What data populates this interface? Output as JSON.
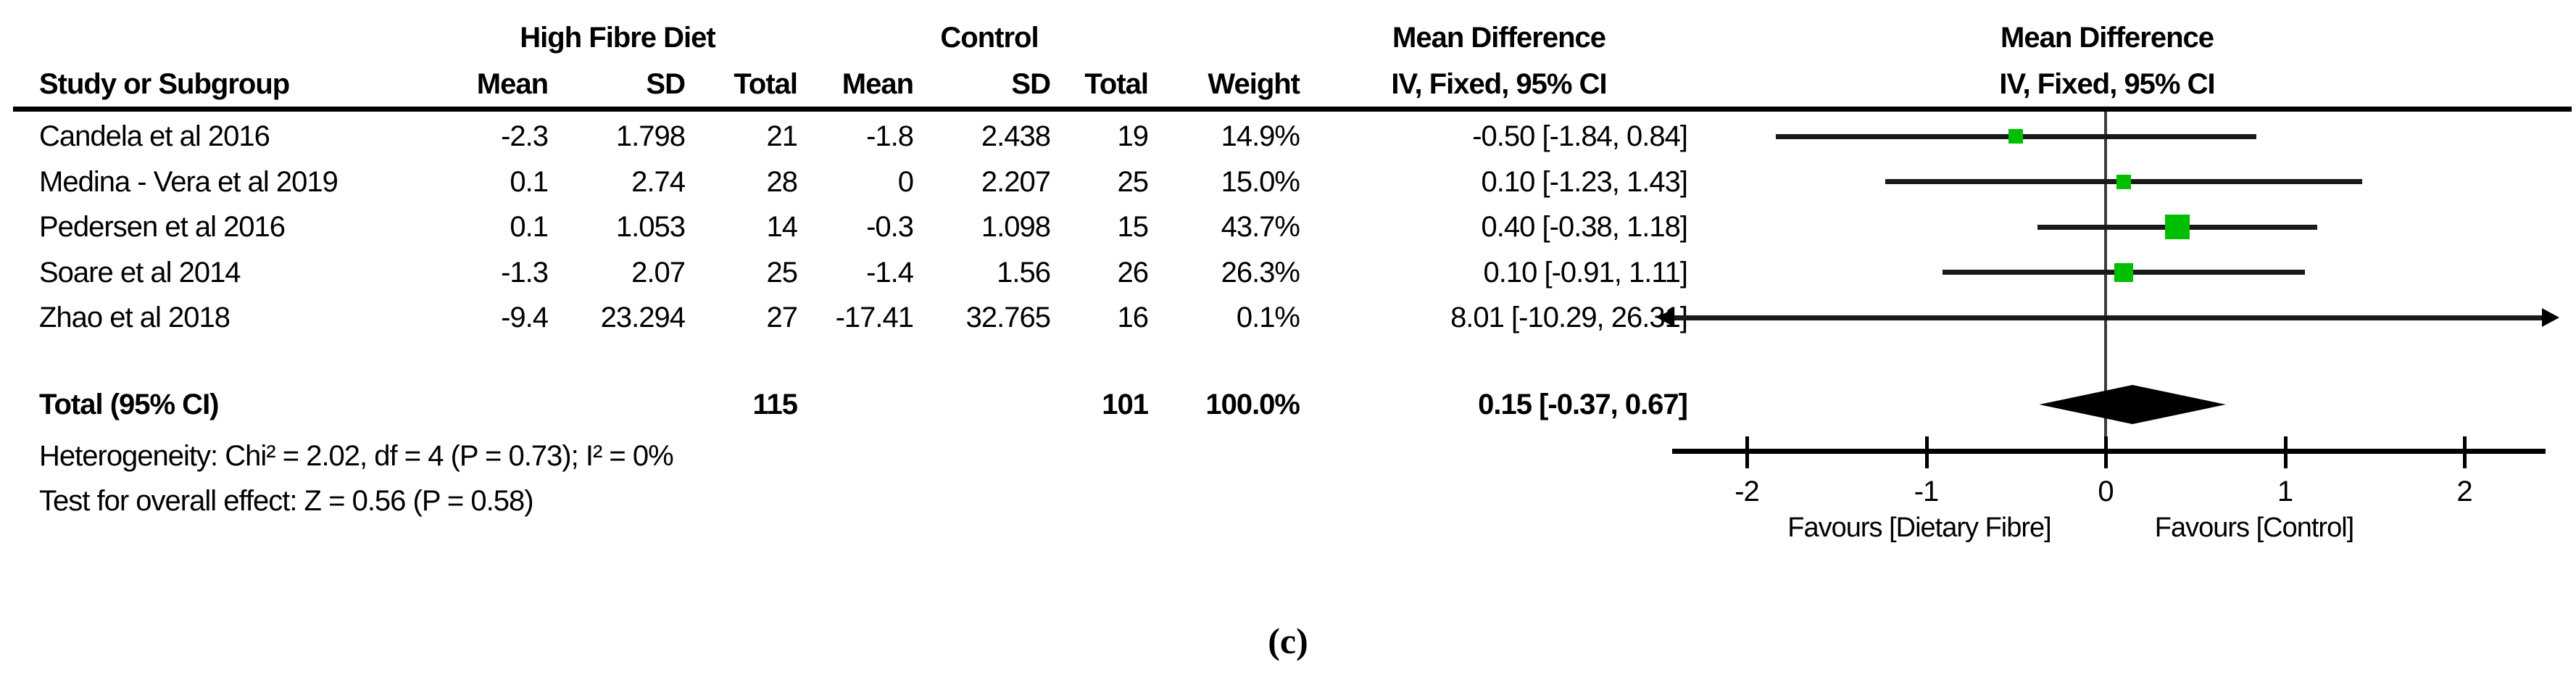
{
  "header": {
    "group_experimental": "High Fibre Diet",
    "group_control": "Control",
    "md_table": "Mean Difference",
    "md_plot": "Mean Difference",
    "ci_table": "IV, Fixed, 95% CI",
    "ci_plot": "IV, Fixed, 95% CI",
    "columns": {
      "study": "Study or Subgroup",
      "mean": "Mean",
      "sd": "SD",
      "total": "Total",
      "weight": "Weight"
    }
  },
  "caption": "(c)",
  "colors": {
    "square_green": "#00bf00",
    "diamond_black": "#000000",
    "text_black": "#000000"
  },
  "chart_data": {
    "type": "forest",
    "effect_measure": "Mean Difference",
    "method": "IV, Fixed, 95% CI",
    "studies": [
      {
        "name": "Candela et al 2016",
        "exp_mean": "-2.3",
        "exp_sd": "1.798",
        "exp_total": "21",
        "ctrl_mean": "-1.8",
        "ctrl_sd": "2.438",
        "ctrl_total": "19",
        "weight_text": "14.9%",
        "ci_text": "-0.50 [-1.84, 0.84]",
        "est": -0.5,
        "lo": -1.84,
        "hi": 0.84,
        "weight_pct": 14.9
      },
      {
        "name": "Medina - Vera et al 2019",
        "exp_mean": "0.1",
        "exp_sd": "2.74",
        "exp_total": "28",
        "ctrl_mean": "0",
        "ctrl_sd": "2.207",
        "ctrl_total": "25",
        "weight_text": "15.0%",
        "ci_text": "0.10 [-1.23, 1.43]",
        "est": 0.1,
        "lo": -1.23,
        "hi": 1.43,
        "weight_pct": 15.0
      },
      {
        "name": "Pedersen et al 2016",
        "exp_mean": "0.1",
        "exp_sd": "1.053",
        "exp_total": "14",
        "ctrl_mean": "-0.3",
        "ctrl_sd": "1.098",
        "ctrl_total": "15",
        "weight_text": "43.7%",
        "ci_text": "0.40 [-0.38, 1.18]",
        "est": 0.4,
        "lo": -0.38,
        "hi": 1.18,
        "weight_pct": 43.7
      },
      {
        "name": "Soare et al 2014",
        "exp_mean": "-1.3",
        "exp_sd": "2.07",
        "exp_total": "25",
        "ctrl_mean": "-1.4",
        "ctrl_sd": "1.56",
        "ctrl_total": "26",
        "weight_text": "26.3%",
        "ci_text": "0.10 [-0.91, 1.11]",
        "est": 0.1,
        "lo": -0.91,
        "hi": 1.11,
        "weight_pct": 26.3
      },
      {
        "name": "Zhao et al 2018",
        "exp_mean": "-9.4",
        "exp_sd": "23.294",
        "exp_total": "27",
        "ctrl_mean": "-17.41",
        "ctrl_sd": "32.765",
        "ctrl_total": "16",
        "weight_text": "0.1%",
        "ci_text": "8.01 [-10.29, 26.31]",
        "est": 8.01,
        "lo": -10.29,
        "hi": 26.31,
        "weight_pct": 0.1
      }
    ],
    "total": {
      "label": "Total (95% CI)",
      "exp_total": "115",
      "ctrl_total": "101",
      "weight_text": "100.0%",
      "ci_text": "0.15 [-0.37, 0.67]",
      "est": 0.15,
      "lo": -0.37,
      "hi": 0.67
    },
    "heterogeneity_text": "Heterogeneity: Chi² = 2.02, df = 4 (P = 0.73); I² = 0%",
    "overall_effect_text": "Test for overall effect: Z = 0.56 (P = 0.58)",
    "xaxis": {
      "min": -2.42,
      "max": 2.45,
      "ticks": [
        -2,
        -1,
        0,
        1,
        2
      ],
      "favours_left": "Favours [Dietary Fibre]",
      "favours_right": "Favours [Control]"
    }
  }
}
